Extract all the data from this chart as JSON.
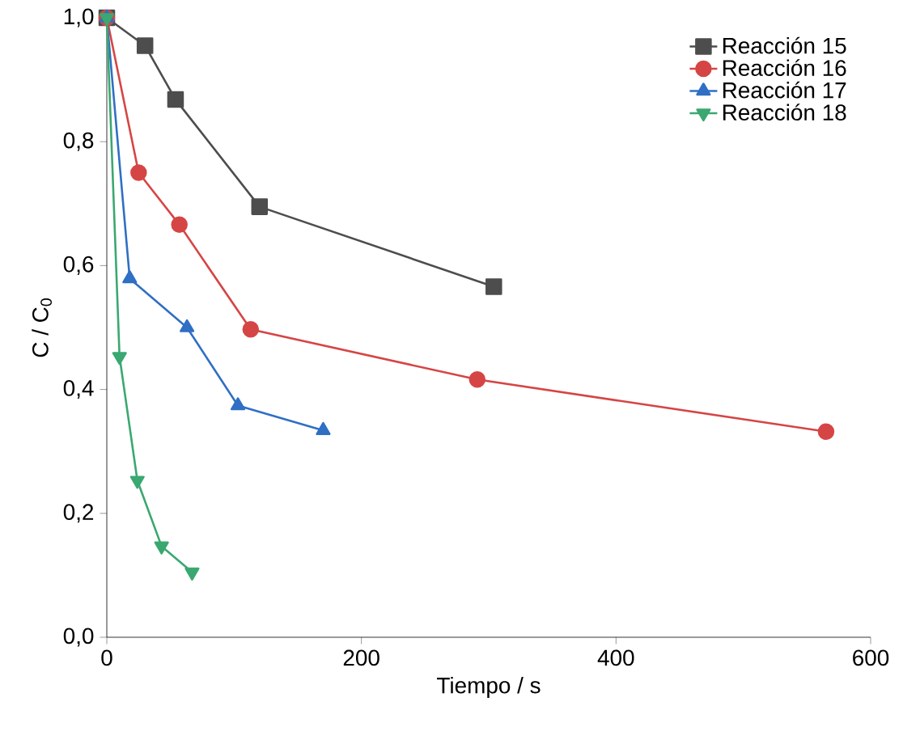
{
  "chart_data": {
    "type": "line",
    "xlabel": "Tiempo / s",
    "ylabel": "C / C$_{0}$",
    "xlim": [
      0,
      600
    ],
    "ylim": [
      0,
      1.0
    ],
    "xticks": [
      0,
      200,
      400,
      600
    ],
    "yticks": [
      {
        "value": 0,
        "label": "0,0"
      },
      {
        "value": 0.2,
        "label": "0,2"
      },
      {
        "value": 0.4,
        "label": "0,4"
      },
      {
        "value": 0.6,
        "label": "0,6"
      },
      {
        "value": 0.8,
        "label": "0,8"
      },
      {
        "value": 1.0,
        "label": "1,0"
      }
    ],
    "grid": false,
    "legend": "top right",
    "line_style": "solid",
    "series": [
      {
        "name": "Reacción 15",
        "color": "#4d4d4d",
        "marker": "square",
        "x": [
          0,
          30,
          54,
          120,
          304
        ],
        "values": [
          1.0,
          0.955,
          0.868,
          0.695,
          0.566
        ]
      },
      {
        "name": "Reacción 16",
        "color": "#d64545",
        "marker": "circle",
        "x": [
          0,
          25,
          57,
          113,
          291,
          565
        ],
        "values": [
          1.0,
          0.75,
          0.666,
          0.497,
          0.416,
          0.332
        ]
      },
      {
        "name": "Reacción 17",
        "color": "#2f6fc4",
        "marker": "triangle",
        "x": [
          0,
          18,
          63,
          103,
          170
        ],
        "values": [
          1.0,
          0.579,
          0.5,
          0.374,
          0.334
        ]
      },
      {
        "name": "Reacción 18",
        "color": "#3aa870",
        "marker": "triangle_down",
        "x": [
          0,
          10,
          24,
          43,
          67
        ],
        "values": [
          1.0,
          0.453,
          0.253,
          0.147,
          0.105
        ]
      }
    ]
  }
}
